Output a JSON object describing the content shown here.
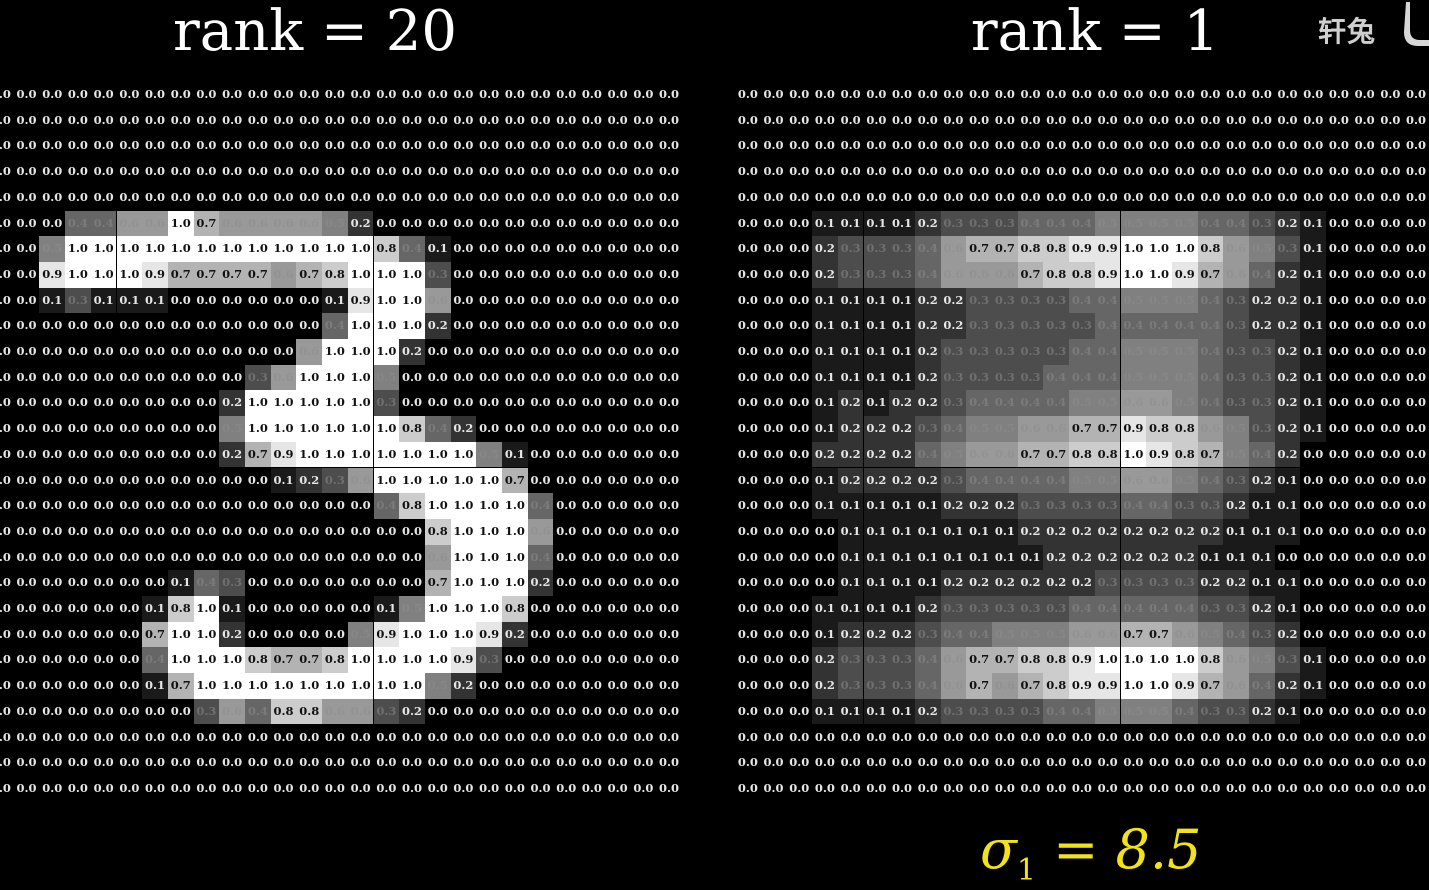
{
  "title_left": "rank = 20",
  "title_right": "rank = 1",
  "watermark": "轩兔",
  "sigma_symbol": "σ",
  "sigma_index": "1",
  "sigma_value": " = 8.5",
  "colors": {
    "background": "#000000",
    "text": "#ffffff",
    "sigma": "#f2e21a",
    "watermark": "#cfcfcf"
  },
  "matrix_left": [
    [
      0,
      0,
      0,
      0,
      0,
      0,
      0,
      0,
      0,
      0,
      0,
      0,
      0,
      0,
      0,
      0,
      0,
      0,
      0,
      0,
      0,
      0,
      0,
      0,
      0,
      0,
      0
    ],
    [
      0,
      0,
      0,
      0,
      0,
      0,
      0,
      0,
      0,
      0,
      0,
      0,
      0,
      0,
      0,
      0,
      0,
      0,
      0,
      0,
      0,
      0,
      0,
      0,
      0,
      0,
      0
    ],
    [
      0,
      0,
      0,
      0,
      0,
      0,
      0,
      0,
      0,
      0,
      0,
      0,
      0,
      0,
      0,
      0,
      0,
      0,
      0,
      0,
      0,
      0,
      0,
      0,
      0,
      0,
      0
    ],
    [
      0,
      0,
      0,
      0,
      0,
      0,
      0,
      0,
      0,
      0,
      0,
      0,
      0,
      0,
      0,
      0,
      0,
      0,
      0,
      0,
      0,
      0,
      0,
      0,
      0,
      0,
      0
    ],
    [
      0,
      0,
      0,
      0,
      0,
      0,
      0,
      0,
      0,
      0,
      0,
      0,
      0,
      0,
      0,
      0,
      0,
      0,
      0,
      0,
      0,
      0,
      0,
      0,
      0,
      0,
      0
    ],
    [
      0,
      0,
      0,
      0.4,
      0.4,
      0.6,
      0.6,
      1.0,
      0.7,
      0.6,
      0.6,
      0.6,
      0.6,
      0.5,
      0.2,
      0,
      0,
      0,
      0,
      0,
      0,
      0,
      0,
      0,
      0,
      0,
      0
    ],
    [
      0,
      0,
      0.5,
      1.0,
      1.0,
      1.0,
      1.0,
      1.0,
      1.0,
      1.0,
      1.0,
      1.0,
      1.0,
      1.0,
      1.0,
      0.8,
      0.4,
      0.1,
      0,
      0,
      0,
      0,
      0,
      0,
      0,
      0,
      0
    ],
    [
      0,
      0,
      0.9,
      1.0,
      1.0,
      1.0,
      0.9,
      0.7,
      0.7,
      0.7,
      0.7,
      0.6,
      0.7,
      0.8,
      1.0,
      1.0,
      1.0,
      0.3,
      0,
      0,
      0,
      0,
      0,
      0,
      0,
      0,
      0
    ],
    [
      0,
      0,
      0.1,
      0.3,
      0.1,
      0.1,
      0.1,
      0,
      0,
      0,
      0,
      0,
      0,
      0.1,
      0.9,
      1.0,
      1.0,
      0.6,
      0,
      0,
      0,
      0,
      0,
      0,
      0,
      0,
      0
    ],
    [
      0,
      0,
      0,
      0,
      0,
      0,
      0,
      0,
      0,
      0,
      0,
      0,
      0,
      0.4,
      1.0,
      1.0,
      1.0,
      0.2,
      0,
      0,
      0,
      0,
      0,
      0,
      0,
      0,
      0
    ],
    [
      0,
      0,
      0,
      0,
      0,
      0,
      0,
      0,
      0,
      0,
      0,
      0,
      0.6,
      1.0,
      1.0,
      1.0,
      0.2,
      0,
      0,
      0,
      0,
      0,
      0,
      0,
      0,
      0,
      0
    ],
    [
      0,
      0,
      0,
      0,
      0,
      0,
      0,
      0,
      0,
      0,
      0.3,
      0.6,
      1.0,
      1.0,
      1.0,
      0.5,
      0,
      0,
      0,
      0,
      0,
      0,
      0,
      0,
      0,
      0,
      0
    ],
    [
      0,
      0,
      0,
      0,
      0,
      0,
      0,
      0,
      0,
      0.2,
      1.0,
      1.0,
      1.0,
      1.0,
      1.0,
      0.3,
      0,
      0,
      0,
      0,
      0,
      0,
      0,
      0,
      0,
      0,
      0
    ],
    [
      0,
      0,
      0,
      0,
      0,
      0,
      0,
      0,
      0,
      0.5,
      1.0,
      1.0,
      1.0,
      1.0,
      1.0,
      1.0,
      0.8,
      0.4,
      0.2,
      0,
      0,
      0,
      0,
      0,
      0,
      0,
      0
    ],
    [
      0,
      0,
      0,
      0,
      0,
      0,
      0,
      0,
      0,
      0.2,
      0.7,
      0.9,
      1.0,
      1.0,
      1.0,
      1.0,
      1.0,
      1.0,
      1.0,
      0.5,
      0.1,
      0,
      0,
      0,
      0,
      0,
      0
    ],
    [
      0,
      0,
      0,
      0,
      0,
      0,
      0,
      0,
      0,
      0,
      0,
      0.1,
      0.2,
      0.3,
      0.6,
      1.0,
      1.0,
      1.0,
      1.0,
      1.0,
      0.7,
      0,
      0,
      0,
      0,
      0,
      0
    ],
    [
      0,
      0,
      0,
      0,
      0,
      0,
      0,
      0,
      0,
      0,
      0,
      0,
      0,
      0,
      0,
      0.4,
      0.8,
      1.0,
      1.0,
      1.0,
      1.0,
      0.4,
      0,
      0,
      0,
      0,
      0
    ],
    [
      0,
      0,
      0,
      0,
      0,
      0,
      0,
      0,
      0,
      0,
      0,
      0,
      0,
      0,
      0,
      0,
      0,
      0.8,
      1.0,
      1.0,
      1.0,
      0.6,
      0,
      0,
      0,
      0,
      0
    ],
    [
      0,
      0,
      0,
      0,
      0,
      0,
      0,
      0,
      0,
      0,
      0,
      0,
      0,
      0,
      0,
      0,
      0,
      0.6,
      1.0,
      1.0,
      1.0,
      0.4,
      0,
      0,
      0,
      0,
      0
    ],
    [
      0,
      0,
      0,
      0,
      0,
      0,
      0,
      0.1,
      0.4,
      0.3,
      0,
      0,
      0,
      0,
      0,
      0,
      0,
      0.7,
      1.0,
      1.0,
      1.0,
      0.2,
      0,
      0,
      0,
      0,
      0
    ],
    [
      0,
      0,
      0,
      0,
      0,
      0,
      0.1,
      0.8,
      1.0,
      0.1,
      0,
      0,
      0,
      0,
      0,
      0.1,
      0.5,
      1.0,
      1.0,
      1.0,
      0.8,
      0,
      0,
      0,
      0,
      0,
      0
    ],
    [
      0,
      0,
      0,
      0,
      0,
      0,
      0.7,
      1.0,
      1.0,
      0.2,
      0,
      0,
      0,
      0,
      0.5,
      0.9,
      1.0,
      1.0,
      1.0,
      0.9,
      0.2,
      0,
      0,
      0,
      0,
      0,
      0
    ],
    [
      0,
      0,
      0,
      0,
      0,
      0,
      0.4,
      1.0,
      1.0,
      1.0,
      0.8,
      0.7,
      0.7,
      0.8,
      1.0,
      1.0,
      1.0,
      1.0,
      0.9,
      0.3,
      0,
      0,
      0,
      0,
      0,
      0,
      0
    ],
    [
      0,
      0,
      0,
      0,
      0,
      0,
      0.1,
      0.7,
      1.0,
      1.0,
      1.0,
      1.0,
      1.0,
      1.0,
      1.0,
      1.0,
      1.0,
      0.5,
      0.2,
      0,
      0,
      0,
      0,
      0,
      0,
      0,
      0
    ],
    [
      0,
      0,
      0,
      0,
      0,
      0,
      0,
      0,
      0.3,
      0.6,
      0.4,
      0.8,
      0.8,
      0.6,
      0.6,
      0.3,
      0.2,
      0,
      0,
      0,
      0,
      0,
      0,
      0,
      0,
      0,
      0
    ],
    [
      0,
      0,
      0,
      0,
      0,
      0,
      0,
      0,
      0,
      0,
      0,
      0,
      0,
      0,
      0,
      0,
      0,
      0,
      0,
      0,
      0,
      0,
      0,
      0,
      0,
      0,
      0
    ],
    [
      0,
      0,
      0,
      0,
      0,
      0,
      0,
      0,
      0,
      0,
      0,
      0,
      0,
      0,
      0,
      0,
      0,
      0,
      0,
      0,
      0,
      0,
      0,
      0,
      0,
      0,
      0
    ],
    [
      0,
      0,
      0,
      0,
      0,
      0,
      0,
      0,
      0,
      0,
      0,
      0,
      0,
      0,
      0,
      0,
      0,
      0,
      0,
      0,
      0,
      0,
      0,
      0,
      0,
      0,
      0
    ]
  ],
  "matrix_right": [
    [
      0,
      0,
      0,
      0,
      0,
      0,
      0,
      0,
      0,
      0,
      0,
      0,
      0,
      0,
      0,
      0,
      0,
      0,
      0,
      0,
      0,
      0,
      0,
      0,
      0,
      0,
      0
    ],
    [
      0,
      0,
      0,
      0,
      0,
      0,
      0,
      0,
      0,
      0,
      0,
      0,
      0,
      0,
      0,
      0,
      0,
      0,
      0,
      0,
      0,
      0,
      0,
      0,
      0,
      0,
      0
    ],
    [
      0,
      0,
      0,
      0,
      0,
      0,
      0,
      0,
      0,
      0,
      0,
      0,
      0,
      0,
      0,
      0,
      0,
      0,
      0,
      0,
      0,
      0,
      0,
      0,
      0,
      0,
      0
    ],
    [
      0,
      0,
      0,
      0,
      0,
      0,
      0,
      0,
      0,
      0,
      0,
      0,
      0,
      0,
      0,
      0,
      0,
      0,
      0,
      0,
      0,
      0,
      0,
      0,
      0,
      0,
      0
    ],
    [
      0,
      0,
      0,
      0,
      0,
      0,
      0,
      0,
      0,
      0,
      0,
      0,
      0,
      0,
      0,
      0,
      0,
      0,
      0,
      0,
      0,
      0,
      0,
      0,
      0,
      0,
      0
    ],
    [
      0,
      0,
      0,
      0.1,
      0.1,
      0.1,
      0.1,
      0.2,
      0.3,
      0.3,
      0.3,
      0.4,
      0.4,
      0.4,
      0.5,
      0.5,
      0.5,
      0.5,
      0.4,
      0.4,
      0.3,
      0.2,
      0.1,
      0,
      0,
      0,
      0
    ],
    [
      0,
      0,
      0,
      0.2,
      0.3,
      0.3,
      0.3,
      0.4,
      0.6,
      0.7,
      0.7,
      0.8,
      0.8,
      0.9,
      0.9,
      1.0,
      1.0,
      1.0,
      0.8,
      0.6,
      0.5,
      0.3,
      0.1,
      0,
      0,
      0,
      0
    ],
    [
      0,
      0,
      0,
      0.2,
      0.3,
      0.3,
      0.3,
      0.4,
      0.6,
      0.6,
      0.6,
      0.7,
      0.8,
      0.8,
      0.9,
      1.0,
      1.0,
      0.9,
      0.7,
      0.6,
      0.4,
      0.2,
      0.1,
      0,
      0,
      0,
      0
    ],
    [
      0,
      0,
      0,
      0.1,
      0.1,
      0.1,
      0.1,
      0.2,
      0.2,
      0.3,
      0.3,
      0.3,
      0.3,
      0.4,
      0.4,
      0.5,
      0.5,
      0.5,
      0.4,
      0.3,
      0.2,
      0.2,
      0.1,
      0,
      0,
      0,
      0
    ],
    [
      0,
      0,
      0,
      0.1,
      0.1,
      0.1,
      0.1,
      0.2,
      0.2,
      0.3,
      0.3,
      0.3,
      0.3,
      0.3,
      0.4,
      0.4,
      0.4,
      0.4,
      0.4,
      0.3,
      0.2,
      0.2,
      0.1,
      0,
      0,
      0,
      0
    ],
    [
      0,
      0,
      0,
      0.1,
      0.1,
      0.1,
      0.1,
      0.2,
      0.3,
      0.3,
      0.3,
      0.3,
      0.3,
      0.4,
      0.4,
      0.5,
      0.5,
      0.5,
      0.4,
      0.3,
      0.3,
      0.2,
      0.1,
      0,
      0,
      0,
      0
    ],
    [
      0,
      0,
      0,
      0.1,
      0.1,
      0.1,
      0.1,
      0.2,
      0.3,
      0.3,
      0.3,
      0.3,
      0.4,
      0.4,
      0.4,
      0.5,
      0.5,
      0.5,
      0.4,
      0.3,
      0.3,
      0.2,
      0.1,
      0,
      0,
      0,
      0
    ],
    [
      0,
      0,
      0,
      0.1,
      0.2,
      0.1,
      0.2,
      0.2,
      0.3,
      0.4,
      0.4,
      0.4,
      0.4,
      0.5,
      0.5,
      0.6,
      0.6,
      0.5,
      0.4,
      0.3,
      0.3,
      0.2,
      0.1,
      0,
      0,
      0,
      0
    ],
    [
      0,
      0,
      0,
      0.1,
      0.2,
      0.2,
      0.2,
      0.3,
      0.4,
      0.5,
      0.5,
      0.6,
      0.6,
      0.7,
      0.7,
      0.9,
      0.8,
      0.8,
      0.6,
      0.5,
      0.3,
      0.2,
      0.1,
      0,
      0,
      0,
      0
    ],
    [
      0,
      0,
      0,
      0.2,
      0.2,
      0.2,
      0.2,
      0.4,
      0.5,
      0.6,
      0.6,
      0.7,
      0.7,
      0.8,
      0.8,
      1.0,
      0.9,
      0.8,
      0.7,
      0.5,
      0.4,
      0.2,
      0,
      0,
      0,
      0,
      0
    ],
    [
      0,
      0,
      0,
      0.1,
      0.2,
      0.2,
      0.2,
      0.2,
      0.3,
      0.4,
      0.4,
      0.4,
      0.4,
      0.5,
      0.5,
      0.6,
      0.6,
      0.5,
      0.4,
      0.3,
      0.2,
      0.1,
      0,
      0,
      0,
      0,
      0
    ],
    [
      0,
      0,
      0,
      0.1,
      0.1,
      0.1,
      0.1,
      0.1,
      0.2,
      0.2,
      0.2,
      0.3,
      0.3,
      0.3,
      0.3,
      0.4,
      0.4,
      0.3,
      0.3,
      0.2,
      0.1,
      0.1,
      0,
      0,
      0,
      0,
      0
    ],
    [
      0,
      0,
      0,
      0,
      0.1,
      0.1,
      0.1,
      0.1,
      0.1,
      0.1,
      0.1,
      0.2,
      0.2,
      0.2,
      0.2,
      0.2,
      0.2,
      0.2,
      0.2,
      0.1,
      0.1,
      0.1,
      0,
      0,
      0,
      0,
      0
    ],
    [
      0,
      0,
      0,
      0,
      0.1,
      0.1,
      0.1,
      0.1,
      0.1,
      0.1,
      0.1,
      0.1,
      0.2,
      0.2,
      0.2,
      0.2,
      0.2,
      0.2,
      0.1,
      0.1,
      0.1,
      0,
      0,
      0,
      0,
      0,
      0
    ],
    [
      0,
      0,
      0,
      0,
      0.1,
      0.1,
      0.1,
      0.1,
      0.2,
      0.2,
      0.2,
      0.2,
      0.2,
      0.2,
      0.3,
      0.3,
      0.3,
      0.3,
      0.2,
      0.2,
      0.1,
      0.1,
      0,
      0,
      0,
      0,
      0
    ],
    [
      0,
      0,
      0,
      0.1,
      0.1,
      0.1,
      0.1,
      0.2,
      0.3,
      0.3,
      0.3,
      0.3,
      0.3,
      0.4,
      0.4,
      0.4,
      0.4,
      0.4,
      0.3,
      0.3,
      0.2,
      0.1,
      0,
      0,
      0,
      0,
      0
    ],
    [
      0,
      0,
      0,
      0.1,
      0.2,
      0.2,
      0.2,
      0.3,
      0.4,
      0.4,
      0.5,
      0.5,
      0.5,
      0.6,
      0.6,
      0.7,
      0.7,
      0.6,
      0.5,
      0.4,
      0.3,
      0.2,
      0,
      0,
      0,
      0,
      0
    ],
    [
      0,
      0,
      0,
      0.2,
      0.3,
      0.3,
      0.3,
      0.4,
      0.6,
      0.7,
      0.7,
      0.8,
      0.8,
      0.9,
      1.0,
      1.0,
      1.0,
      1.0,
      0.8,
      0.6,
      0.5,
      0.3,
      0.1,
      0,
      0,
      0,
      0
    ],
    [
      0,
      0,
      0,
      0.2,
      0.3,
      0.3,
      0.3,
      0.4,
      0.6,
      0.7,
      0.6,
      0.7,
      0.8,
      0.9,
      0.9,
      1.0,
      1.0,
      0.9,
      0.7,
      0.6,
      0.4,
      0.2,
      0.1,
      0,
      0,
      0,
      0
    ],
    [
      0,
      0,
      0,
      0.1,
      0.1,
      0.1,
      0.1,
      0.2,
      0.3,
      0.3,
      0.3,
      0.3,
      0.4,
      0.4,
      0.5,
      0.5,
      0.5,
      0.4,
      0.3,
      0.3,
      0.2,
      0.1,
      0,
      0,
      0,
      0,
      0
    ],
    [
      0,
      0,
      0,
      0,
      0,
      0,
      0,
      0,
      0,
      0,
      0,
      0,
      0,
      0,
      0,
      0,
      0,
      0,
      0,
      0,
      0,
      0,
      0,
      0,
      0,
      0,
      0
    ],
    [
      0,
      0,
      0,
      0,
      0,
      0,
      0,
      0,
      0,
      0,
      0,
      0,
      0,
      0,
      0,
      0,
      0,
      0,
      0,
      0,
      0,
      0,
      0,
      0,
      0,
      0,
      0
    ],
    [
      0,
      0,
      0,
      0,
      0,
      0,
      0,
      0,
      0,
      0,
      0,
      0,
      0,
      0,
      0,
      0,
      0,
      0,
      0,
      0,
      0,
      0,
      0,
      0,
      0,
      0,
      0
    ]
  ]
}
